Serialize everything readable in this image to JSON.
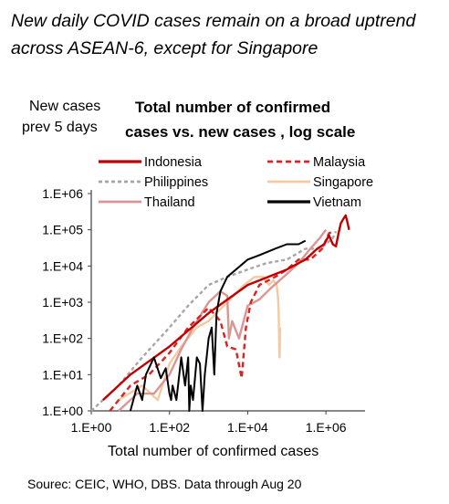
{
  "headline": "New daily COVID cases remain on a broad uptrend across ASEAN-6, except for Singapore",
  "source": "Sourec: CEIC, WHO, DBS. Data through Aug 20",
  "chart_data": {
    "type": "line",
    "title": "Total number of confirmed cases vs. new cases , log scale",
    "title_lines": [
      "Total number of confirmed",
      "cases vs. new cases , log scale"
    ],
    "ylabel_lines": [
      "New cases",
      "prev 5 days"
    ],
    "xlabel": "Total number of confirmed cases",
    "x_scale": "log",
    "y_scale": "log",
    "xlim": [
      1,
      10000000
    ],
    "ylim": [
      1,
      1000000
    ],
    "x_ticks": [
      {
        "value": 1,
        "label": "1.E+00"
      },
      {
        "value": 100,
        "label": "1.E+02"
      },
      {
        "value": 10000,
        "label": "1.E+04"
      },
      {
        "value": 1000000,
        "label": "1.E+06"
      }
    ],
    "y_ticks": [
      {
        "value": 1,
        "label": "1.E+00"
      },
      {
        "value": 10,
        "label": "1.E+01"
      },
      {
        "value": 100,
        "label": "1.E+02"
      },
      {
        "value": 1000,
        "label": "1.E+03"
      },
      {
        "value": 10000,
        "label": "1.E+04"
      },
      {
        "value": 100000,
        "label": "1.E+05"
      },
      {
        "value": 1000000,
        "label": "1.E+06"
      }
    ],
    "grid": false,
    "legend_position": "top",
    "series": [
      {
        "name": "Indonesia",
        "color": "#C00000",
        "dash": "solid",
        "x": [
          2,
          10,
          100,
          1000,
          10000,
          100000,
          200000,
          300000,
          400000,
          500000,
          600000,
          900000,
          1200000,
          1500000,
          1800000,
          2100000,
          2400000,
          2800000,
          3200000,
          3600000,
          3900000
        ],
        "y": [
          2,
          10,
          60,
          500,
          3000,
          8000,
          12000,
          15000,
          20000,
          25000,
          30000,
          40000,
          70000,
          40000,
          35000,
          80000,
          150000,
          200000,
          250000,
          150000,
          100000
        ]
      },
      {
        "name": "Malaysia",
        "color": "#E02020",
        "dash": "6,4",
        "x": [
          3,
          10,
          30,
          100,
          300,
          1000,
          2000,
          3000,
          5000,
          7000,
          9000,
          12000,
          20000,
          50000,
          100000,
          200000,
          400000,
          800000,
          1200000,
          1500000
        ],
        "y": [
          1,
          5,
          10,
          40,
          200,
          700,
          300,
          60,
          50,
          8,
          200,
          1000,
          3000,
          5000,
          8000,
          15000,
          15000,
          30000,
          80000,
          90000
        ]
      },
      {
        "name": "Philippines",
        "color": "#A6A6A6",
        "dash": "4,3",
        "x": [
          1,
          5,
          20,
          100,
          300,
          1000,
          3000,
          10000,
          30000,
          100000,
          300000,
          700000,
          1000000,
          1500000,
          1800000
        ],
        "y": [
          1,
          5,
          30,
          200,
          800,
          3000,
          5000,
          8000,
          12000,
          15000,
          30000,
          30000,
          40000,
          60000,
          90000
        ]
      },
      {
        "name": "Singapore",
        "color": "#F7C9A0",
        "dash": "solid",
        "x": [
          5,
          20,
          50,
          100,
          200,
          500,
          1000,
          3000,
          8000,
          15000,
          25000,
          35000,
          45000,
          55000,
          60000,
          62000,
          64000,
          65000,
          66000,
          67000
        ],
        "y": [
          2,
          5,
          2,
          20,
          60,
          200,
          300,
          1000,
          3000,
          5000,
          5000,
          3000,
          4000,
          3000,
          1200,
          500,
          50,
          30,
          50,
          200
        ]
      },
      {
        "name": "Thailand",
        "color": "#D99694",
        "dash": "solid",
        "x": [
          5,
          15,
          40,
          100,
          200,
          400,
          1000,
          2000,
          3000,
          3300,
          4000,
          6000,
          10000,
          20000,
          40000,
          100000,
          200000,
          400000,
          700000,
          1000000
        ],
        "y": [
          1,
          3,
          3,
          10,
          50,
          200,
          1000,
          2000,
          1500,
          100,
          300,
          100,
          800,
          1200,
          2500,
          6000,
          12000,
          30000,
          60000,
          100000
        ]
      },
      {
        "name": "Vietnam",
        "color": "#000000",
        "dash": "solid",
        "x": [
          10,
          15,
          20,
          25,
          40,
          60,
          80,
          100,
          110,
          120,
          150,
          200,
          250,
          300,
          320,
          350,
          400,
          500,
          600,
          700,
          800,
          1000,
          1200,
          1400,
          1600,
          2000,
          3000,
          5000,
          10000,
          20000,
          50000,
          100000,
          200000,
          300000
        ],
        "y": [
          1,
          5,
          2,
          10,
          30,
          8,
          15,
          3,
          2,
          5,
          2,
          30,
          5,
          30,
          1,
          5,
          2,
          30,
          20,
          1,
          10,
          100,
          200,
          10,
          500,
          2000,
          5000,
          8000,
          15000,
          20000,
          30000,
          40000,
          40000,
          50000
        ]
      }
    ]
  }
}
